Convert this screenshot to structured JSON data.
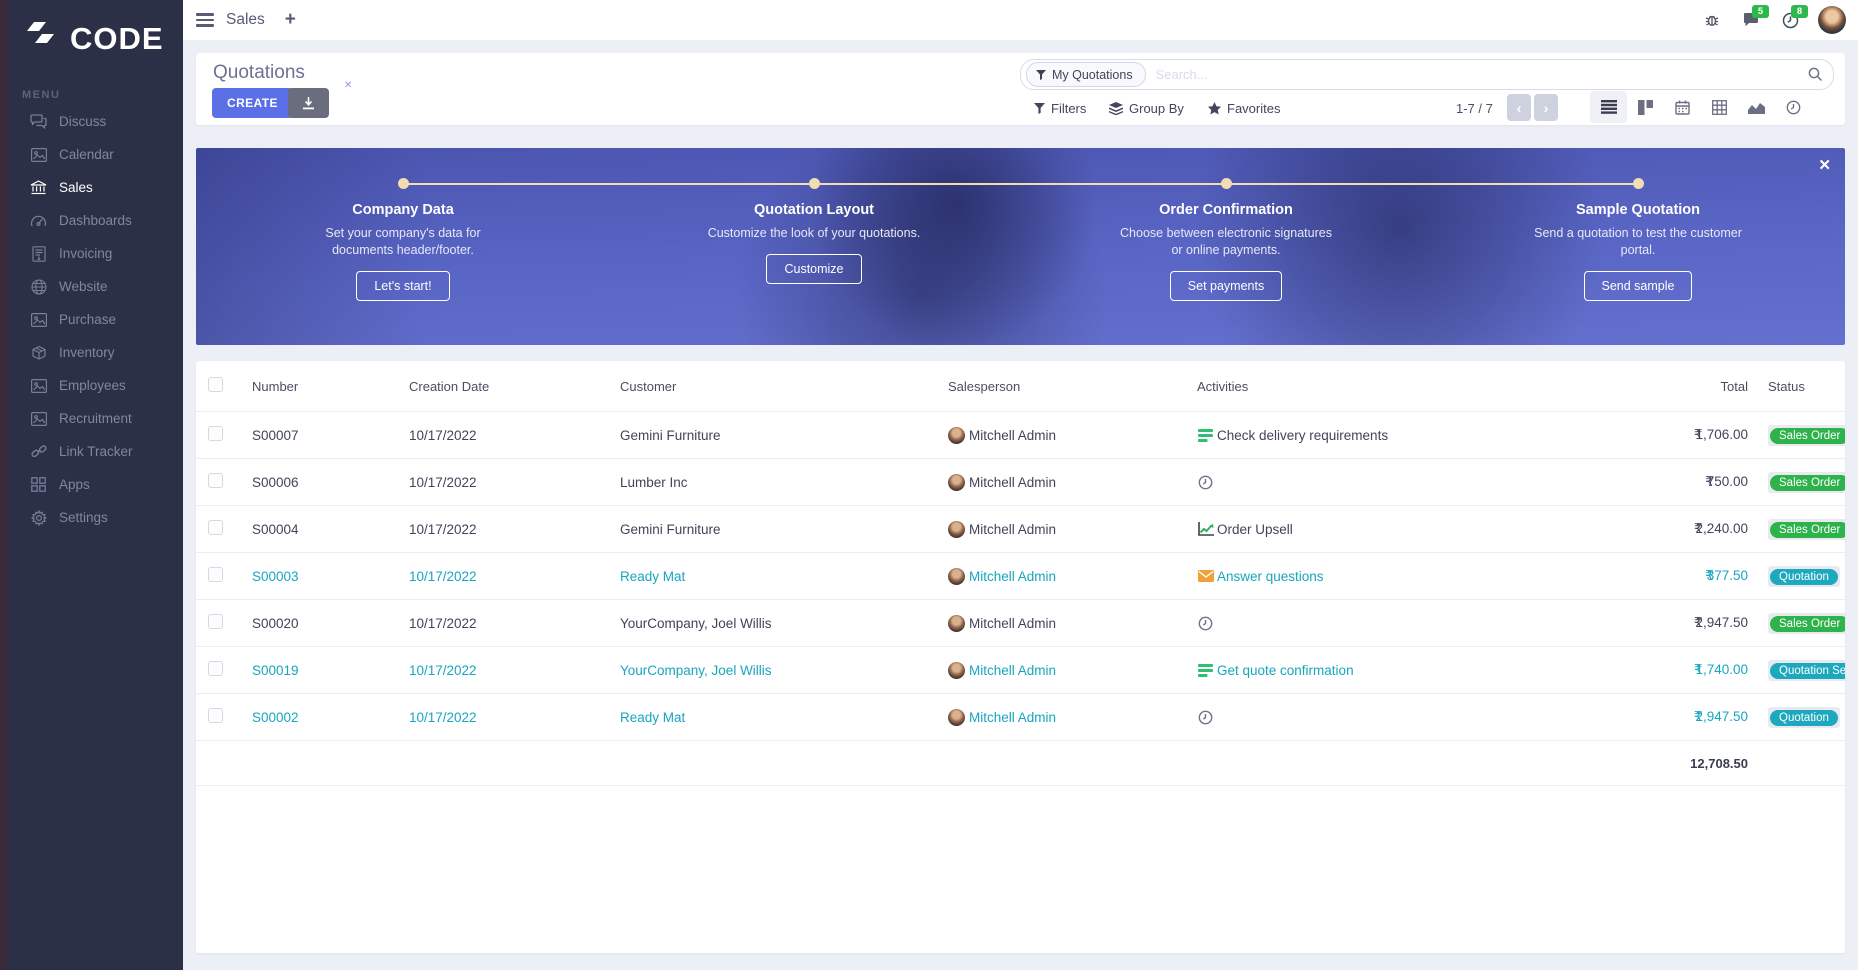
{
  "colors": {
    "primary": "#5b6fe6",
    "accent_teal": "#18a5c0",
    "badge_green": "#2eb24b",
    "badge_teal": "#1ea8bd",
    "sidebar_bg": "#2b3046",
    "banner_dot": "#f2ddb2",
    "notify_green": "#2db84c"
  },
  "sidebar": {
    "logo_text": "CODE",
    "logo_icon": "double-chevron-icon",
    "menu_label": "MENU",
    "items": [
      {
        "label": "Discuss",
        "icon": "comments-icon",
        "active": false
      },
      {
        "label": "Calendar",
        "icon": "image-placeholder-icon",
        "active": false
      },
      {
        "label": "Sales",
        "icon": "bank-icon",
        "active": true
      },
      {
        "label": "Dashboards",
        "icon": "tachometer-icon",
        "active": false
      },
      {
        "label": "Invoicing",
        "icon": "invoice-icon",
        "active": false
      },
      {
        "label": "Website",
        "icon": "globe-icon",
        "active": false
      },
      {
        "label": "Purchase",
        "icon": "image-placeholder-icon",
        "active": false
      },
      {
        "label": "Inventory",
        "icon": "box-icon",
        "active": false
      },
      {
        "label": "Employees",
        "icon": "image-placeholder-icon",
        "active": false
      },
      {
        "label": "Recruitment",
        "icon": "image-placeholder-icon",
        "active": false
      },
      {
        "label": "Link Tracker",
        "icon": "link-icon",
        "active": false
      },
      {
        "label": "Apps",
        "icon": "grid-icon",
        "active": false
      },
      {
        "label": "Settings",
        "icon": "gear-icon",
        "active": false
      }
    ]
  },
  "topbar": {
    "app_title": "Sales",
    "new_tab_label": "+",
    "messages_badge": "5",
    "activities_badge": "8"
  },
  "header": {
    "title": "Quotations",
    "create_label": "CREATE",
    "filter_chip": "My Quotations",
    "search_placeholder": "Search...",
    "filters_label": "Filters",
    "group_by_label": "Group By",
    "favorites_label": "Favorites",
    "pager": "1-7 / 7"
  },
  "banner": {
    "close_label": "✕",
    "steps": [
      {
        "title": "Company Data",
        "description": "Set your company's data for documents header/footer.",
        "button": "Let's start!"
      },
      {
        "title": "Quotation Layout",
        "description": "Customize the look of your quotations.",
        "button": "Customize"
      },
      {
        "title": "Order Confirmation",
        "description": "Choose between electronic signatures or online payments.",
        "button": "Set payments"
      },
      {
        "title": "Sample Quotation",
        "description": "Send a quotation to test the customer portal.",
        "button": "Send sample"
      }
    ]
  },
  "table": {
    "columns": [
      "Number",
      "Creation Date",
      "Customer",
      "Salesperson",
      "Activities",
      "Total",
      "Status"
    ],
    "currency_symbol": "₹",
    "rows": [
      {
        "number": "S00007",
        "creation_date": "10/17/2022",
        "customer": "Gemini Furniture",
        "salesperson": "Mitchell Admin",
        "activity": {
          "icon": "tasks-icon",
          "label": "Check delivery requirements"
        },
        "total": "1,706.00",
        "status": "Sales Order",
        "status_color": "green",
        "accent": false
      },
      {
        "number": "S00006",
        "creation_date": "10/17/2022",
        "customer": "Lumber Inc",
        "salesperson": "Mitchell Admin",
        "activity": {
          "icon": "clock-icon",
          "label": ""
        },
        "total": "750.00",
        "status": "Sales Order",
        "status_color": "green",
        "accent": false
      },
      {
        "number": "S00004",
        "creation_date": "10/17/2022",
        "customer": "Gemini Furniture",
        "salesperson": "Mitchell Admin",
        "activity": {
          "icon": "chart-increase-icon",
          "label": "Order Upsell"
        },
        "total": "2,240.00",
        "status": "Sales Order",
        "status_color": "green",
        "accent": false
      },
      {
        "number": "S00003",
        "creation_date": "10/17/2022",
        "customer": "Ready Mat",
        "salesperson": "Mitchell Admin",
        "activity": {
          "icon": "envelope-icon",
          "label": "Answer questions"
        },
        "total": "377.50",
        "status": "Quotation",
        "status_color": "teal",
        "accent": true
      },
      {
        "number": "S00020",
        "creation_date": "10/17/2022",
        "customer": "YourCompany, Joel Willis",
        "salesperson": "Mitchell Admin",
        "activity": {
          "icon": "clock-icon",
          "label": ""
        },
        "total": "2,947.50",
        "status": "Sales Order",
        "status_color": "green",
        "accent": false
      },
      {
        "number": "S00019",
        "creation_date": "10/17/2022",
        "customer": "YourCompany, Joel Willis",
        "salesperson": "Mitchell Admin",
        "activity": {
          "icon": "tasks-icon",
          "label": "Get quote confirmation"
        },
        "total": "1,740.00",
        "status": "Quotation Sent",
        "status_color": "teal",
        "accent": true
      },
      {
        "number": "S00002",
        "creation_date": "10/17/2022",
        "customer": "Ready Mat",
        "salesperson": "Mitchell Admin",
        "activity": {
          "icon": "clock-icon",
          "label": ""
        },
        "total": "2,947.50",
        "status": "Quotation",
        "status_color": "teal",
        "accent": true
      }
    ],
    "footer_total": "12,708.50"
  }
}
